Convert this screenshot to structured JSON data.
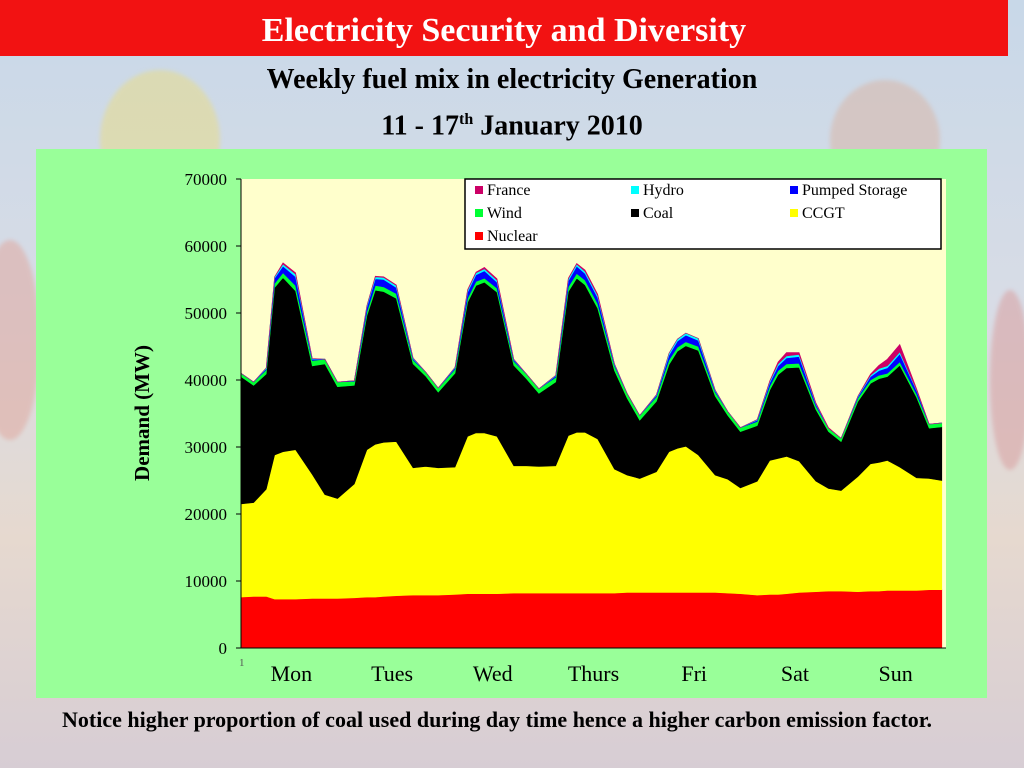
{
  "slide": {
    "title": "Electricity Security and Diversity",
    "subtitle_line1": "Weekly fuel mix in electricity Generation",
    "subtitle_line2_pre": "11 - 17",
    "subtitle_line2_sup": "th",
    "subtitle_line2_post": " January 2010",
    "footnote": "Notice higher proportion of coal used during day time hence a higher carbon emission factor."
  },
  "colors": {
    "title_bar": "#f21212",
    "panel": "#99ff99",
    "plot_area": "#ffffcc",
    "nuclear": "#ff0000",
    "ccgt": "#ffff00",
    "coal": "#000000",
    "wind": "#00ff33",
    "pumped_storage": "#0000ff",
    "hydro": "#00ffff",
    "france": "#cc0066"
  },
  "chart_data": {
    "type": "area",
    "stacked": true,
    "ylabel": "Demand (MW)",
    "ylim": [
      0,
      70000
    ],
    "yticks": [
      0,
      10000,
      20000,
      30000,
      40000,
      50000,
      60000,
      70000
    ],
    "x_start_label": "1",
    "day_labels": [
      "Mon",
      "Tues",
      "Wed",
      "Thurs",
      "Fri",
      "Sat",
      "Sun"
    ],
    "legend_position": "top-right",
    "legend": [
      {
        "name": "France",
        "color": "#cc0066"
      },
      {
        "name": "Hydro",
        "color": "#00ffff"
      },
      {
        "name": "Pumped Storage",
        "color": "#0000ff"
      },
      {
        "name": "Wind",
        "color": "#00ff33"
      },
      {
        "name": "Coal",
        "color": "#000000"
      },
      {
        "name": "CCGT",
        "color": "#ffff00"
      },
      {
        "name": "Nuclear",
        "color": "#ff0000"
      }
    ],
    "x_hours": [
      0,
      3,
      6,
      8,
      10,
      13,
      17,
      20,
      23,
      27,
      30,
      32,
      34,
      37,
      41,
      44,
      47,
      51,
      54,
      56,
      58,
      61,
      65,
      68,
      71,
      75,
      78,
      80,
      82,
      85,
      89,
      92,
      95,
      99,
      102,
      104,
      106,
      109,
      113,
      116,
      119,
      123,
      126,
      128,
      130,
      133,
      137,
      140,
      143,
      147,
      150,
      152,
      154,
      157,
      161,
      164,
      167
    ],
    "series": [
      {
        "name": "Nuclear",
        "values": [
          7600,
          7700,
          7700,
          7300,
          7300,
          7300,
          7400,
          7400,
          7400,
          7500,
          7600,
          7600,
          7700,
          7800,
          7900,
          7900,
          7900,
          8000,
          8100,
          8100,
          8100,
          8100,
          8200,
          8200,
          8200,
          8200,
          8200,
          8200,
          8200,
          8200,
          8200,
          8300,
          8300,
          8300,
          8300,
          8300,
          8300,
          8300,
          8300,
          8200,
          8100,
          7900,
          8000,
          8000,
          8100,
          8300,
          8400,
          8500,
          8500,
          8400,
          8500,
          8500,
          8600,
          8600,
          8600,
          8700,
          8700
        ]
      },
      {
        "name": "CCGT",
        "values": [
          13900,
          14000,
          16000,
          21500,
          22000,
          22300,
          18500,
          15500,
          14900,
          17000,
          22000,
          22800,
          23000,
          23000,
          19000,
          19200,
          19000,
          19000,
          23500,
          24000,
          24000,
          23500,
          19000,
          19000,
          18900,
          19000,
          23500,
          24000,
          24000,
          23000,
          18500,
          17500,
          17000,
          18000,
          21000,
          21500,
          21800,
          20500,
          17500,
          17000,
          15800,
          17000,
          20000,
          20300,
          20500,
          19600,
          16500,
          15300,
          15000,
          17200,
          19000,
          19200,
          19400,
          18400,
          16800,
          16600,
          16300
        ]
      },
      {
        "name": "Coal",
        "values": [
          19000,
          17500,
          17200,
          25000,
          26000,
          23700,
          16200,
          19500,
          16700,
          14700,
          20000,
          23000,
          22500,
          21400,
          15500,
          13500,
          11300,
          14000,
          20000,
          22000,
          22500,
          21500,
          15000,
          13000,
          10900,
          12500,
          21500,
          23000,
          22000,
          19500,
          14700,
          11500,
          8700,
          10500,
          13000,
          14500,
          15000,
          15600,
          11800,
          9500,
          8400,
          8300,
          10500,
          12500,
          13200,
          14000,
          10700,
          8500,
          7300,
          11200,
          12000,
          12500,
          12500,
          15200,
          12000,
          7500,
          8000
        ]
      },
      {
        "name": "Wind",
        "values": [
          500,
          500,
          600,
          600,
          700,
          800,
          800,
          700,
          700,
          600,
          600,
          700,
          700,
          700,
          600,
          600,
          600,
          600,
          600,
          600,
          600,
          600,
          600,
          700,
          700,
          700,
          700,
          700,
          700,
          700,
          700,
          700,
          700,
          700,
          700,
          600,
          600,
          600,
          600,
          600,
          600,
          600,
          600,
          600,
          600,
          600,
          500,
          500,
          500,
          500,
          500,
          500,
          500,
          500,
          500,
          600,
          600
        ]
      },
      {
        "name": "Pumped Storage",
        "values": [
          0,
          0,
          200,
          800,
          1000,
          1300,
          200,
          0,
          0,
          100,
          700,
          1000,
          1100,
          900,
          200,
          0,
          0,
          200,
          900,
          1000,
          1100,
          900,
          200,
          0,
          0,
          200,
          900,
          1100,
          1000,
          900,
          200,
          0,
          0,
          200,
          700,
          900,
          1000,
          900,
          200,
          0,
          0,
          200,
          500,
          700,
          900,
          1000,
          300,
          0,
          0,
          200,
          500,
          700,
          800,
          1200,
          500,
          0,
          0
        ]
      },
      {
        "name": "Hydro",
        "values": [
          0,
          0,
          100,
          200,
          300,
          400,
          100,
          0,
          0,
          0,
          200,
          300,
          300,
          300,
          100,
          0,
          0,
          100,
          300,
          300,
          300,
          300,
          100,
          0,
          0,
          100,
          300,
          300,
          300,
          300,
          100,
          0,
          0,
          100,
          300,
          300,
          300,
          300,
          100,
          0,
          0,
          100,
          200,
          300,
          300,
          300,
          100,
          0,
          0,
          100,
          200,
          300,
          300,
          300,
          100,
          0,
          0
        ]
      },
      {
        "name": "France",
        "values": [
          0,
          0,
          0,
          0,
          200,
          200,
          0,
          0,
          0,
          0,
          0,
          100,
          100,
          100,
          0,
          0,
          0,
          0,
          100,
          100,
          200,
          200,
          0,
          0,
          0,
          0,
          100,
          100,
          200,
          200,
          0,
          0,
          0,
          0,
          0,
          0,
          0,
          0,
          0,
          0,
          0,
          0,
          100,
          300,
          500,
          300,
          100,
          100,
          0,
          0,
          200,
          500,
          1000,
          1100,
          200,
          0,
          0
        ]
      }
    ]
  }
}
